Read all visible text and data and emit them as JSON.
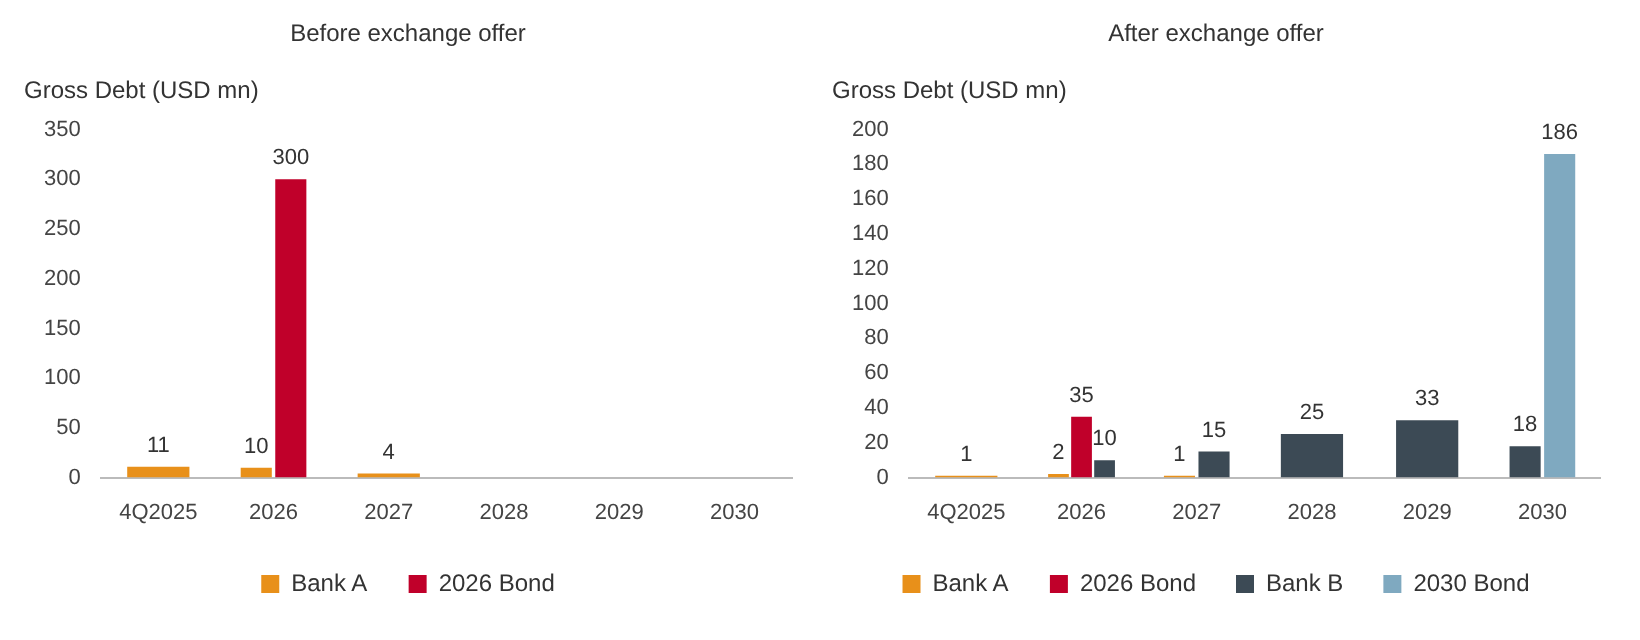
{
  "chart_data": [
    {
      "type": "bar",
      "title": "Before exchange offer",
      "ylabel": "Gross Debt (USD mn)",
      "categories": [
        "4Q2025",
        "2026",
        "2027",
        "2028",
        "2029",
        "2030"
      ],
      "series": [
        {
          "name": "Bank A",
          "color": "#e8901a",
          "values": [
            11,
            10,
            4,
            null,
            null,
            null
          ]
        },
        {
          "name": "2026 Bond",
          "color": "#c0002a",
          "values": [
            null,
            300,
            null,
            null,
            null,
            null
          ]
        }
      ],
      "ylim": [
        0,
        350
      ],
      "yticks": [
        0,
        50,
        100,
        150,
        200,
        250,
        300,
        350
      ],
      "grid": false,
      "legend": "bottom",
      "data_labels": true
    },
    {
      "type": "bar",
      "title": "After exchange offer",
      "ylabel": "Gross Debt (USD mn)",
      "categories": [
        "4Q2025",
        "2026",
        "2027",
        "2028",
        "2029",
        "2030"
      ],
      "series": [
        {
          "name": "Bank A",
          "color": "#e8901a",
          "values": [
            1,
            2,
            1,
            null,
            null,
            null
          ]
        },
        {
          "name": "2026 Bond",
          "color": "#c0002a",
          "values": [
            null,
            35,
            null,
            null,
            null,
            null
          ]
        },
        {
          "name": "Bank B",
          "color": "#3c4a55",
          "values": [
            null,
            10,
            15,
            25,
            33,
            18
          ]
        },
        {
          "name": "2030 Bond",
          "color": "#7fa9c0",
          "values": [
            null,
            null,
            null,
            null,
            null,
            186
          ]
        }
      ],
      "ylim": [
        0,
        200
      ],
      "yticks": [
        0,
        20,
        40,
        60,
        80,
        100,
        120,
        140,
        160,
        180,
        200
      ],
      "grid": false,
      "legend": "bottom",
      "data_labels": true
    }
  ]
}
